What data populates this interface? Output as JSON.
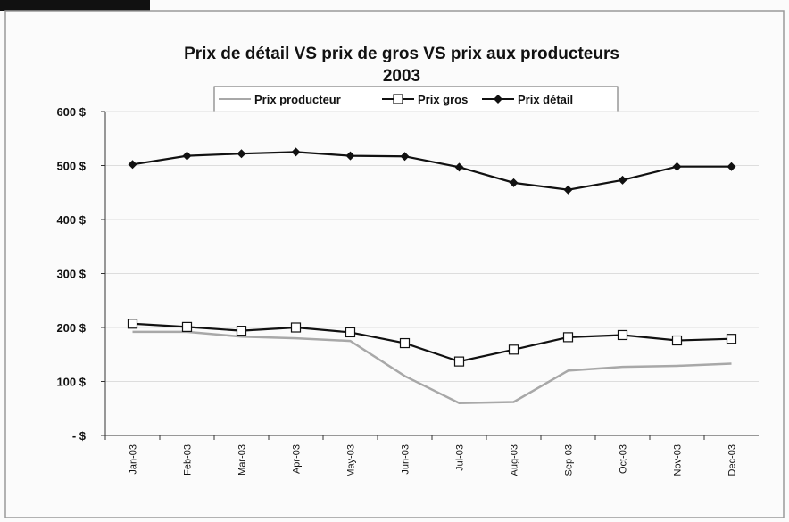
{
  "chart_data": {
    "type": "line",
    "title": "Prix de détail VS prix de gros VS  prix aux producteurs",
    "subtitle": "2003",
    "categories": [
      "Jan-03",
      "Feb-03",
      "Mar-03",
      "Apr-03",
      "May-03",
      "Jun-03",
      "Jul-03",
      "Aug-03",
      "Sep-03",
      "Oct-03",
      "Nov-03",
      "Dec-03"
    ],
    "series": [
      {
        "name": "Prix producteur",
        "color": "#a8a8a8",
        "marker": "none",
        "values": [
          192,
          192,
          183,
          180,
          175,
          110,
          60,
          62,
          120,
          127,
          129,
          133
        ]
      },
      {
        "name": "Prix gros",
        "color": "#111111",
        "marker": "square",
        "values": [
          207,
          201,
          194,
          200,
          191,
          171,
          137,
          159,
          182,
          186,
          176,
          179
        ]
      },
      {
        "name": "Prix  détail",
        "color": "#111111",
        "marker": "diamond",
        "values": [
          502,
          518,
          522,
          525,
          518,
          517,
          497,
          468,
          455,
          473,
          498,
          498
        ]
      }
    ],
    "ylim": [
      0,
      600
    ],
    "yticks": [
      {
        "value": 0,
        "label": "- $"
      },
      {
        "value": 100,
        "label": "100 $"
      },
      {
        "value": 200,
        "label": "200 $"
      },
      {
        "value": 300,
        "label": "300 $"
      },
      {
        "value": 400,
        "label": "400 $"
      },
      {
        "value": 500,
        "label": "500 $"
      },
      {
        "value": 600,
        "label": "600 $"
      }
    ],
    "grid": true,
    "legend": "top"
  }
}
